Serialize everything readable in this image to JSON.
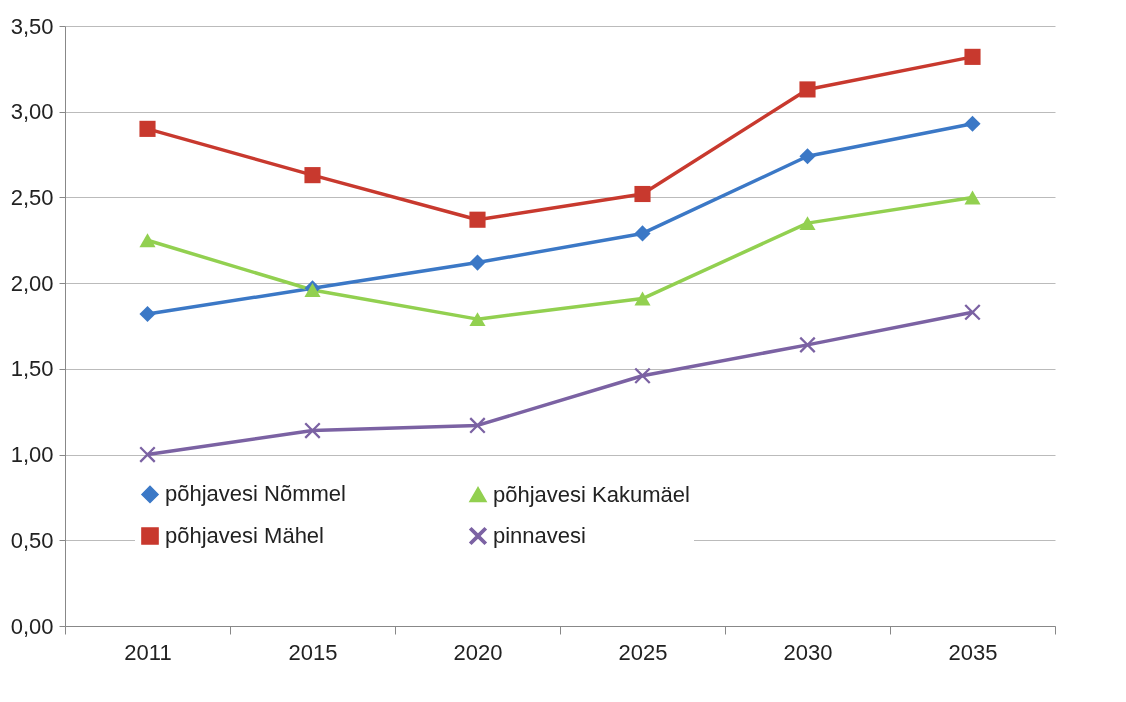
{
  "chart_data": {
    "type": "line",
    "categories": [
      "2011",
      "2015",
      "2020",
      "2025",
      "2030",
      "2035"
    ],
    "series": [
      {
        "name": "põhjavesi Nõmmel",
        "color": "#3b78c6",
        "marker": "diamond",
        "values": [
          1.82,
          1.97,
          2.12,
          2.29,
          2.74,
          2.93
        ]
      },
      {
        "name": "põhjavesi Mähel",
        "color": "#c8392e",
        "marker": "square",
        "values": [
          2.9,
          2.63,
          2.37,
          2.52,
          3.13,
          3.32
        ]
      },
      {
        "name": "põhjavesi Kakumäel",
        "color": "#92d050",
        "marker": "triangle",
        "values": [
          2.25,
          1.96,
          1.79,
          1.91,
          2.35,
          2.5
        ]
      },
      {
        "name": "pinnavesi",
        "color": "#7b62a3",
        "marker": "cross",
        "values": [
          1.0,
          1.14,
          1.17,
          1.46,
          1.64,
          1.83
        ]
      }
    ],
    "ylim": [
      0,
      3.5
    ],
    "yticks": [
      {
        "value": 0,
        "label": "0,00"
      },
      {
        "value": 0.5,
        "label": "0,50"
      },
      {
        "value": 1,
        "label": "1,00"
      },
      {
        "value": 1.5,
        "label": "1,50"
      },
      {
        "value": 2,
        "label": "2,00"
      },
      {
        "value": 2.5,
        "label": "2,50"
      },
      {
        "value": 3,
        "label": "3,00"
      },
      {
        "value": 3.5,
        "label": "3,50"
      }
    ],
    "grid": "y",
    "legend": "bottom",
    "line_style": "solid"
  }
}
